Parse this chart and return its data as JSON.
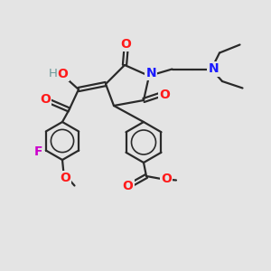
{
  "bg_color": "#e4e4e4",
  "bond_color": "#2a2a2a",
  "bond_width": 1.6,
  "figsize": [
    3.0,
    3.0
  ],
  "dpi": 100,
  "atom_colors": {
    "N": "#1a1aff",
    "O": "#ff1a1a",
    "F": "#cc00cc",
    "H": "#6a9a9a"
  }
}
